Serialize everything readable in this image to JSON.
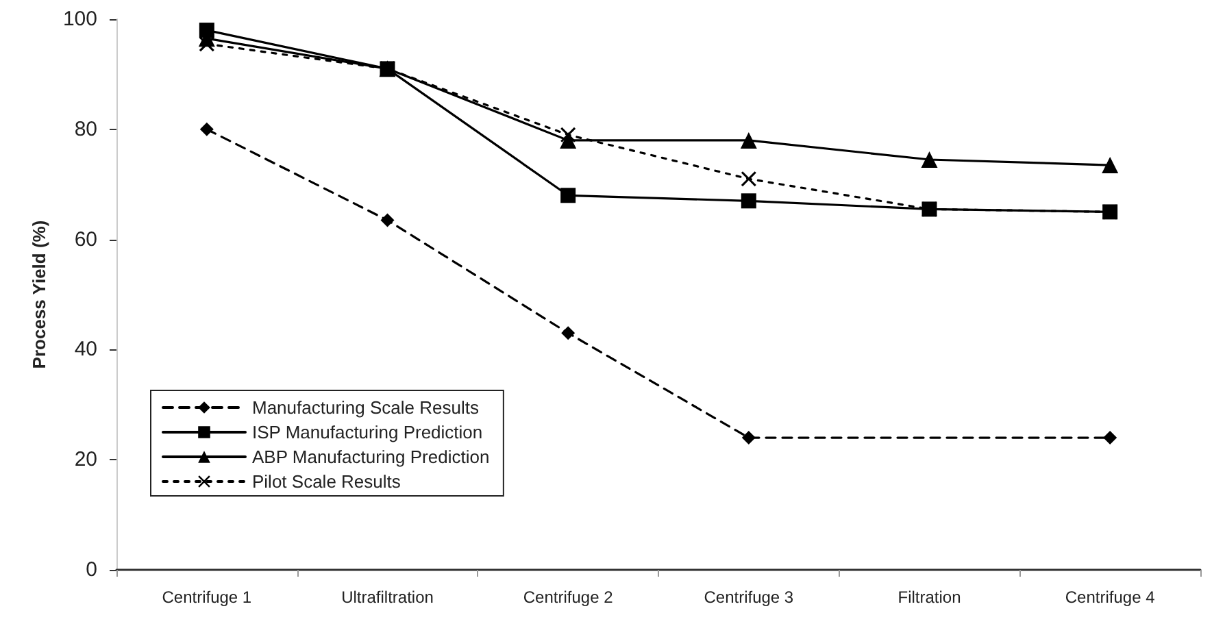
{
  "chart_data": {
    "type": "line",
    "ylabel": "Process Yield (%)",
    "categories": [
      "Centrifuge 1",
      "Ultrafiltration",
      "Centrifuge 2",
      "Centrifuge 3",
      "Filtration",
      "Centrifuge 4"
    ],
    "series": [
      {
        "name": "Manufacturing Scale Results",
        "color": "#000000",
        "marker": "diamond",
        "line_style": "dashed",
        "values": [
          80,
          63.5,
          43,
          24,
          null,
          24
        ]
      },
      {
        "name": "ISP Manufacturing Prediction",
        "color": "#000000",
        "marker": "square",
        "line_style": "solid",
        "values": [
          98,
          91,
          68,
          67,
          65.5,
          65
        ]
      },
      {
        "name": "ABP Manufacturing Prediction",
        "color": "#000000",
        "marker": "triangle",
        "line_style": "solid",
        "values": [
          96.5,
          91,
          78,
          78,
          74.5,
          73.5
        ]
      },
      {
        "name": "Pilot Scale Results",
        "color": "#000000",
        "marker": "cross",
        "line_style": "dotted",
        "values": [
          95.5,
          91,
          79,
          71,
          65.5,
          65
        ]
      }
    ],
    "ylim": [
      0,
      100
    ],
    "yticks": [
      0,
      20,
      40,
      60,
      80,
      100
    ],
    "grid": false,
    "legend": "bottom left"
  }
}
